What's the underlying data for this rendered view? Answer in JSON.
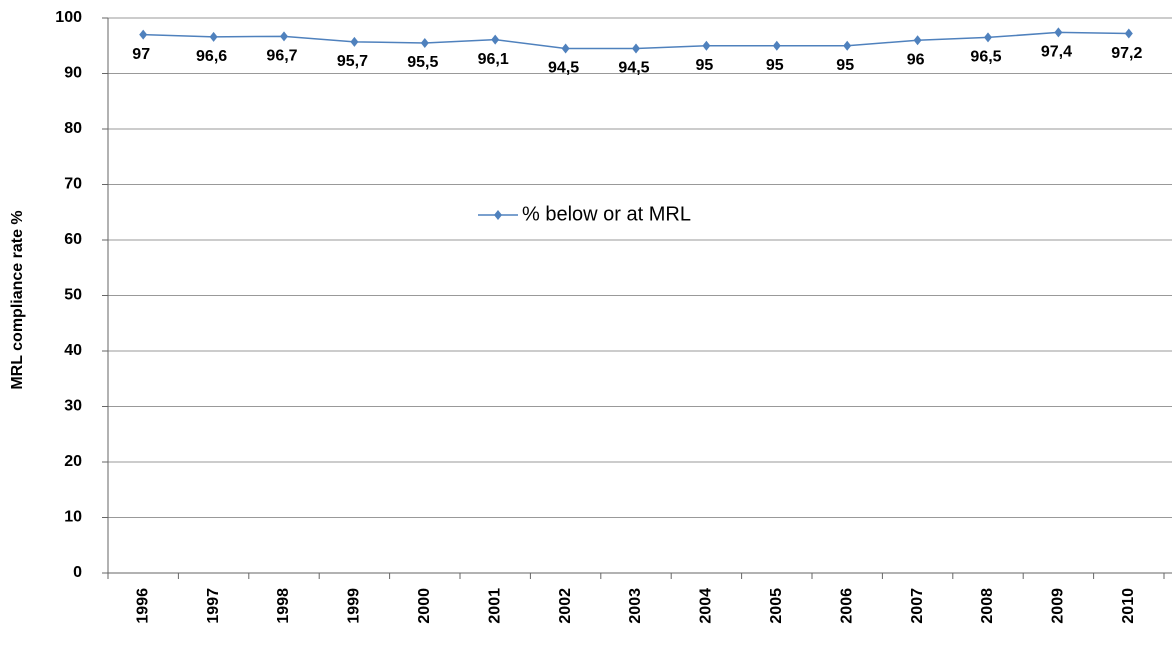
{
  "chart_data": {
    "type": "line",
    "y_label": "MRL compliance rate %",
    "categories": [
      "1996",
      "1997",
      "1998",
      "1999",
      "2000",
      "2001",
      "2002",
      "2003",
      "2004",
      "2005",
      "2006",
      "2007",
      "2008",
      "2009",
      "2010"
    ],
    "series": [
      {
        "name": "% below or at MRL",
        "color": "#4f81bd",
        "values": [
          97,
          96.6,
          96.7,
          95.7,
          95.5,
          96.1,
          94.5,
          94.5,
          95,
          95,
          95,
          96,
          96.5,
          97.4,
          97.2
        ],
        "value_labels": [
          "97",
          "96,6",
          "96,7",
          "95,7",
          "95,5",
          "96,1",
          "94,5",
          "94,5",
          "95",
          "95",
          "95",
          "96",
          "96,5",
          "97,4",
          "97,2"
        ]
      }
    ],
    "ylim": [
      0,
      100
    ],
    "yticks": [
      0,
      10,
      20,
      30,
      40,
      50,
      60,
      70,
      80,
      90,
      100
    ],
    "grid": true
  }
}
